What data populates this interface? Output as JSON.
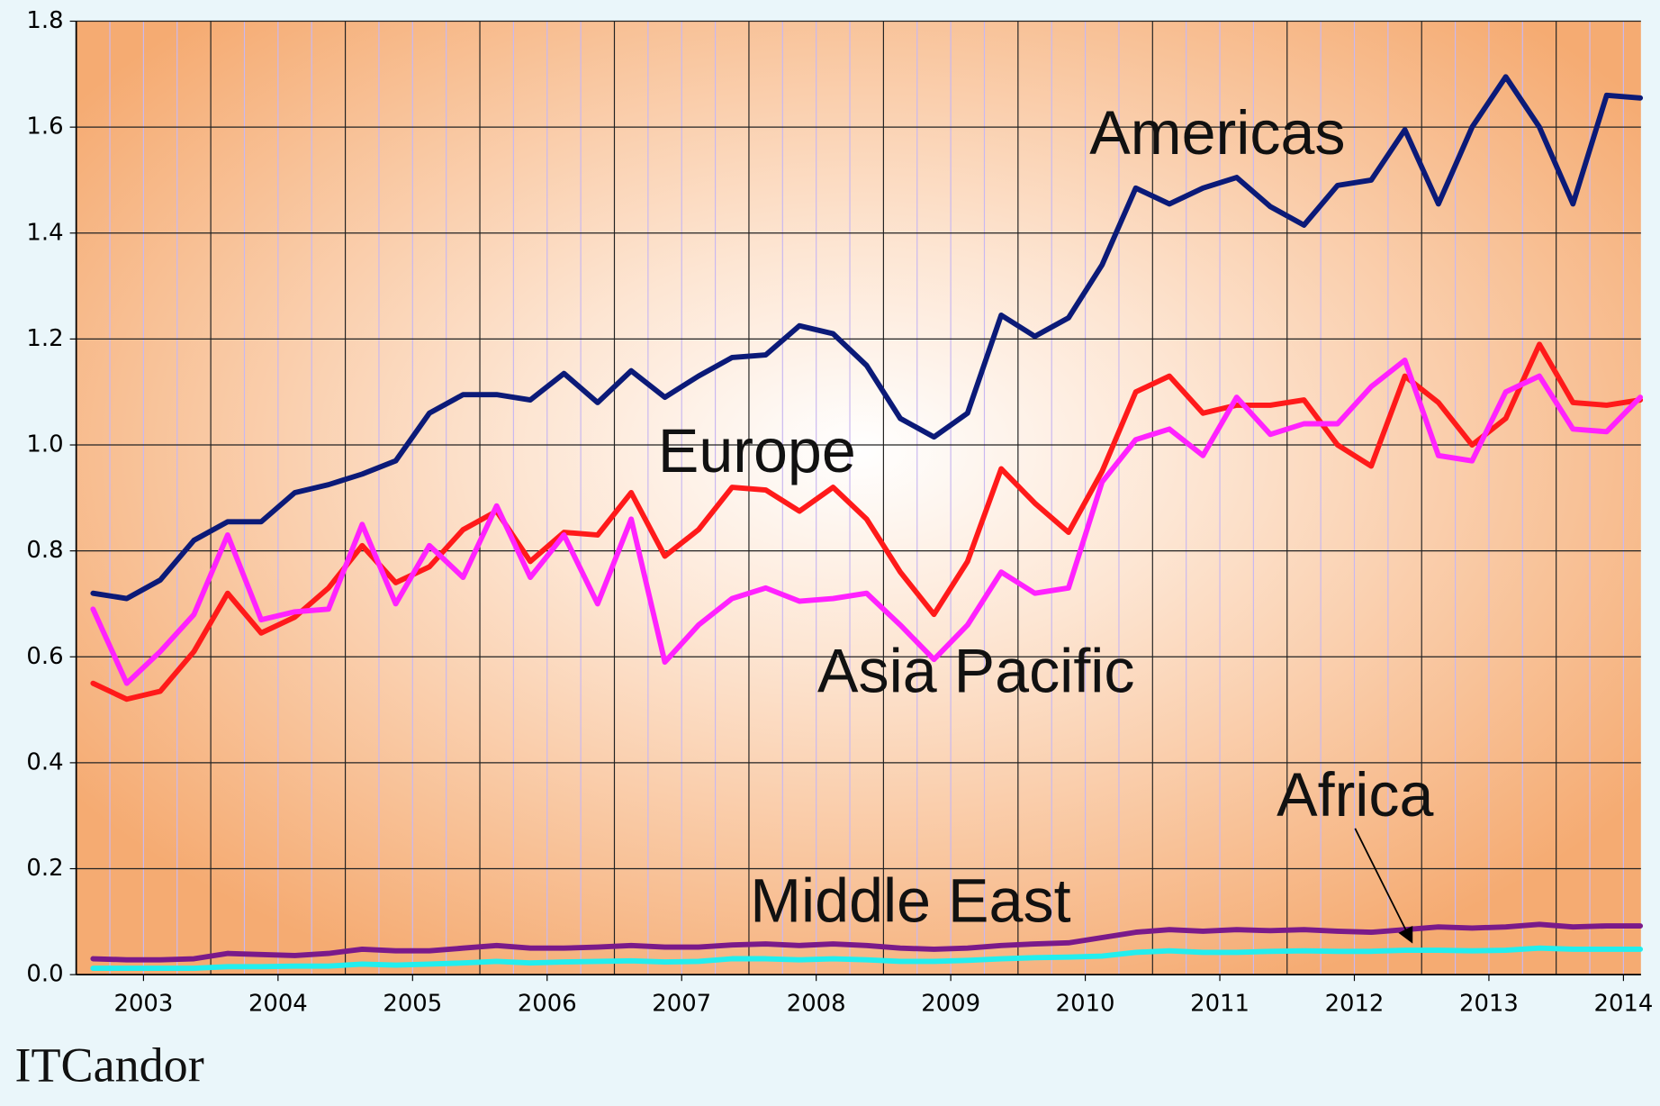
{
  "chart_data": {
    "type": "line",
    "x": [
      2003.125,
      2003.375,
      2003.625,
      2003.875,
      2004.125,
      2004.375,
      2004.625,
      2004.875,
      2005.125,
      2005.375,
      2005.625,
      2005.875,
      2006.125,
      2006.375,
      2006.625,
      2006.875,
      2007.125,
      2007.375,
      2007.625,
      2007.875,
      2008.125,
      2008.375,
      2008.625,
      2008.875,
      2009.125,
      2009.375,
      2009.625,
      2009.875,
      2010.125,
      2010.375,
      2010.625,
      2010.875,
      2011.125,
      2011.375,
      2011.625,
      2011.875,
      2012.125,
      2012.375,
      2012.625,
      2012.875,
      2013.125,
      2013.375,
      2013.625,
      2013.875,
      2014.125,
      2014.375,
      2014.625
    ],
    "series": [
      {
        "name": "Americas",
        "color": "#0b1a78",
        "values": [
          0.72,
          0.71,
          0.745,
          0.82,
          0.855,
          0.855,
          0.91,
          0.925,
          0.945,
          0.97,
          1.06,
          1.095,
          1.095,
          1.085,
          1.135,
          1.08,
          1.14,
          1.09,
          1.13,
          1.165,
          1.17,
          1.225,
          1.21,
          1.15,
          1.05,
          1.015,
          1.06,
          1.245,
          1.205,
          1.24,
          1.34,
          1.485,
          1.455,
          1.485,
          1.505,
          1.45,
          1.415,
          1.49,
          1.5,
          1.595,
          1.455,
          1.6,
          1.695,
          1.6,
          1.455,
          1.66,
          1.655
        ]
      },
      {
        "name": "Europe",
        "color": "#ff1a1a",
        "values": [
          0.55,
          0.52,
          0.535,
          0.61,
          0.72,
          0.645,
          0.675,
          0.73,
          0.81,
          0.74,
          0.77,
          0.84,
          0.875,
          0.78,
          0.835,
          0.83,
          0.91,
          0.79,
          0.84,
          0.92,
          0.915,
          0.875,
          0.92,
          0.86,
          0.76,
          0.68,
          0.78,
          0.955,
          0.89,
          0.835,
          0.95,
          1.1,
          1.13,
          1.06,
          1.075,
          1.075,
          1.085,
          1.0,
          0.96,
          1.13,
          1.08,
          1.0,
          1.05,
          1.19,
          1.08,
          1.075,
          1.085
        ]
      },
      {
        "name": "Asia Pacific",
        "color": "#ff22ff",
        "values": [
          0.69,
          0.55,
          0.61,
          0.68,
          0.83,
          0.67,
          0.685,
          0.69,
          0.85,
          0.7,
          0.81,
          0.75,
          0.885,
          0.75,
          0.83,
          0.7,
          0.86,
          0.59,
          0.66,
          0.71,
          0.73,
          0.705,
          0.71,
          0.72,
          0.66,
          0.595,
          0.66,
          0.76,
          0.72,
          0.73,
          0.93,
          1.01,
          1.03,
          0.98,
          1.09,
          1.02,
          1.04,
          1.04,
          1.11,
          1.16,
          0.98,
          0.97,
          1.1,
          1.13,
          1.03,
          1.025,
          1.09
        ]
      },
      {
        "name": "Middle East",
        "color": "#7a1a8a",
        "values": [
          0.03,
          0.028,
          0.028,
          0.03,
          0.04,
          0.038,
          0.036,
          0.04,
          0.048,
          0.045,
          0.045,
          0.05,
          0.055,
          0.05,
          0.05,
          0.052,
          0.055,
          0.052,
          0.052,
          0.056,
          0.058,
          0.055,
          0.058,
          0.055,
          0.05,
          0.048,
          0.05,
          0.055,
          0.058,
          0.06,
          0.07,
          0.08,
          0.085,
          0.082,
          0.085,
          0.083,
          0.085,
          0.082,
          0.08,
          0.085,
          0.09,
          0.088,
          0.09,
          0.095,
          0.09,
          0.092,
          0.092
        ]
      },
      {
        "name": "Africa",
        "color": "#22eeee",
        "values": [
          0.012,
          0.012,
          0.012,
          0.012,
          0.015,
          0.015,
          0.016,
          0.016,
          0.02,
          0.018,
          0.02,
          0.022,
          0.025,
          0.022,
          0.024,
          0.025,
          0.026,
          0.024,
          0.025,
          0.03,
          0.03,
          0.028,
          0.03,
          0.028,
          0.025,
          0.025,
          0.027,
          0.03,
          0.032,
          0.033,
          0.035,
          0.042,
          0.045,
          0.042,
          0.042,
          0.044,
          0.045,
          0.044,
          0.044,
          0.046,
          0.046,
          0.045,
          0.046,
          0.05,
          0.048,
          0.048,
          0.048
        ]
      }
    ],
    "xlim": [
      2003,
      2014.63
    ],
    "xticks": [
      {
        "value": 2003.5,
        "label": "2003"
      },
      {
        "value": 2004.5,
        "label": "2004"
      },
      {
        "value": 2005.5,
        "label": "2005"
      },
      {
        "value": 2006.5,
        "label": "2006"
      },
      {
        "value": 2007.5,
        "label": "2007"
      },
      {
        "value": 2008.5,
        "label": "2008"
      },
      {
        "value": 2009.5,
        "label": "2009"
      },
      {
        "value": 2010.5,
        "label": "2010"
      },
      {
        "value": 2011.5,
        "label": "2011"
      },
      {
        "value": 2012.5,
        "label": "2012"
      },
      {
        "value": 2013.5,
        "label": "2013"
      },
      {
        "value": 2014.5,
        "label": "2014"
      }
    ],
    "ylim": [
      0,
      1.8
    ],
    "yticks": [
      {
        "value": 0,
        "label": "0.0"
      },
      {
        "value": 0.2,
        "label": "0.2"
      },
      {
        "value": 0.4,
        "label": "0.4"
      },
      {
        "value": 0.6,
        "label": "0.6"
      },
      {
        "value": 0.8,
        "label": "0.8"
      },
      {
        "value": 1,
        "label": "1.0"
      },
      {
        "value": 1.2,
        "label": "1.2"
      },
      {
        "value": 1.4,
        "label": "1.4"
      },
      {
        "value": 1.6,
        "label": "1.6"
      },
      {
        "value": 1.8,
        "label": "1.8"
      }
    ],
    "grid": true,
    "logo": "ITCandor"
  }
}
